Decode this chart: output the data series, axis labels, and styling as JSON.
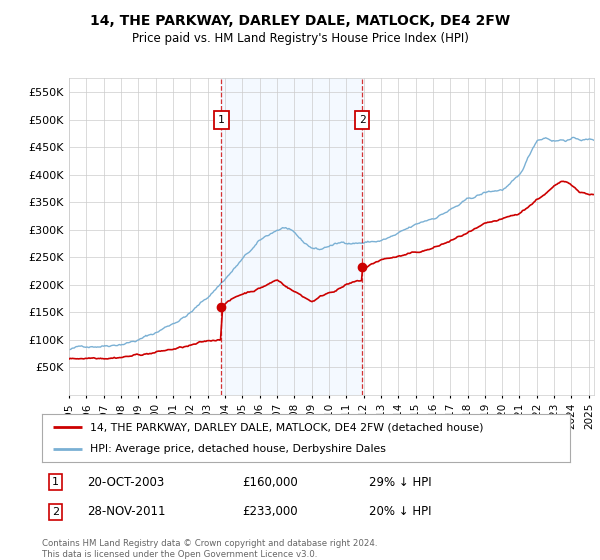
{
  "title": "14, THE PARKWAY, DARLEY DALE, MATLOCK, DE4 2FW",
  "subtitle": "Price paid vs. HM Land Registry's House Price Index (HPI)",
  "ylim": [
    0,
    575000
  ],
  "yticks": [
    0,
    50000,
    100000,
    150000,
    200000,
    250000,
    300000,
    350000,
    400000,
    450000,
    500000,
    550000
  ],
  "xlim_start": 1995.0,
  "xlim_end": 2025.3,
  "property_color": "#cc0000",
  "hpi_color": "#7ab0d4",
  "sale1_date": 2003.8,
  "sale1_price": 160000,
  "sale2_date": 2011.92,
  "sale2_price": 233000,
  "legend_property": "14, THE PARKWAY, DARLEY DALE, MATLOCK, DE4 2FW (detached house)",
  "legend_hpi": "HPI: Average price, detached house, Derbyshire Dales",
  "footnote1": "Contains HM Land Registry data © Crown copyright and database right 2024.",
  "footnote2": "This data is licensed under the Open Government Licence v3.0.",
  "background_color": "#ffffff",
  "shade_color": "#ddeeff",
  "grid_color": "#cccccc",
  "annot1_date": "20-OCT-2003",
  "annot1_price": "£160,000",
  "annot1_hpi": "29% ↓ HPI",
  "annot2_date": "28-NOV-2011",
  "annot2_price": "£233,000",
  "annot2_hpi": "20% ↓ HPI"
}
